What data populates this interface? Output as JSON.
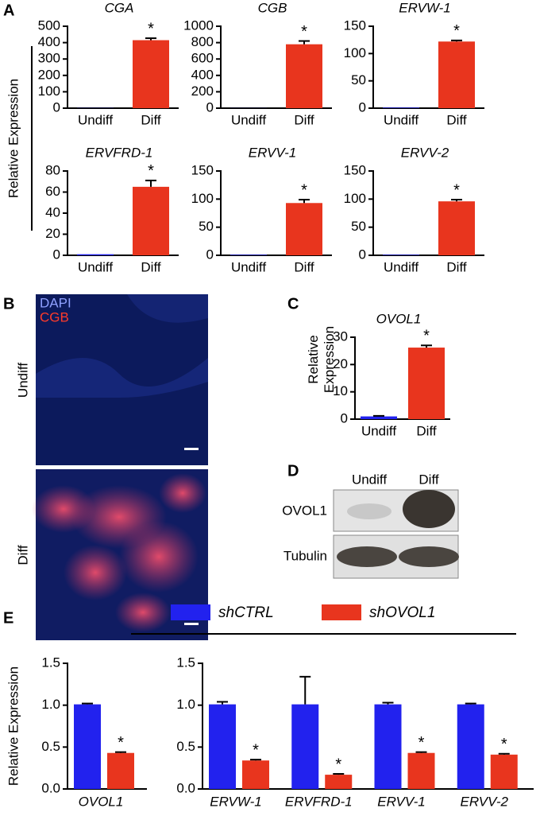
{
  "chart_data": [
    {
      "type": "bar",
      "title": "CGA",
      "categories": [
        "Undiff",
        "Diff"
      ],
      "values": [
        1,
        415
      ],
      "errors": [
        0,
        12
      ],
      "colors": [
        "#2222ee",
        "#e8351e"
      ],
      "annotations": [
        null,
        "*"
      ],
      "ylim": [
        0,
        500
      ],
      "yticks": [
        0,
        100,
        200,
        300,
        400,
        500
      ]
    },
    {
      "type": "bar",
      "title": "CGB",
      "categories": [
        "Undiff",
        "Diff"
      ],
      "values": [
        1,
        780
      ],
      "errors": [
        0,
        40
      ],
      "colors": [
        "#2222ee",
        "#e8351e"
      ],
      "annotations": [
        null,
        "*"
      ],
      "ylim": [
        0,
        1000
      ],
      "yticks": [
        0,
        200,
        400,
        600,
        800,
        1000
      ]
    },
    {
      "type": "bar",
      "title": "ERVW-1",
      "categories": [
        "Undiff",
        "Diff"
      ],
      "values": [
        1,
        122
      ],
      "errors": [
        0,
        2
      ],
      "colors": [
        "#2222ee",
        "#e8351e"
      ],
      "annotations": [
        null,
        "*"
      ],
      "ylim": [
        0,
        150
      ],
      "yticks": [
        0,
        50,
        100,
        150
      ]
    },
    {
      "type": "bar",
      "title": "ERVFRD-1",
      "categories": [
        "Undiff",
        "Diff"
      ],
      "values": [
        1,
        65
      ],
      "errors": [
        0,
        6
      ],
      "colors": [
        "#2222ee",
        "#e8351e"
      ],
      "annotations": [
        null,
        "*"
      ],
      "ylim": [
        0,
        80
      ],
      "yticks": [
        0,
        20,
        40,
        60,
        80
      ]
    },
    {
      "type": "bar",
      "title": "ERVV-1",
      "categories": [
        "Undiff",
        "Diff"
      ],
      "values": [
        1,
        93
      ],
      "errors": [
        0,
        6
      ],
      "colors": [
        "#2222ee",
        "#e8351e"
      ],
      "annotations": [
        null,
        "*"
      ],
      "ylim": [
        0,
        150
      ],
      "yticks": [
        0,
        50,
        100,
        150
      ]
    },
    {
      "type": "bar",
      "title": "ERVV-2",
      "categories": [
        "Undiff",
        "Diff"
      ],
      "values": [
        1,
        96
      ],
      "errors": [
        0,
        3
      ],
      "colors": [
        "#2222ee",
        "#e8351e"
      ],
      "annotations": [
        null,
        "*"
      ],
      "ylim": [
        0,
        150
      ],
      "yticks": [
        0,
        50,
        100,
        150
      ]
    },
    {
      "type": "bar",
      "title": "OVOL1",
      "ylabel": "Relative Expression",
      "categories": [
        "Undiff",
        "Diff"
      ],
      "values": [
        1,
        26.2
      ],
      "errors": [
        0.2,
        0.8
      ],
      "colors": [
        "#2222ee",
        "#e8351e"
      ],
      "annotations": [
        null,
        "*"
      ],
      "ylim": [
        0,
        30
      ],
      "yticks": [
        0,
        10,
        20,
        30
      ]
    },
    {
      "type": "grouped_bar",
      "categories": [
        "OVOL1"
      ],
      "ylabel": "Relative Expression",
      "series": [
        {
          "color": "#2222ee",
          "values": [
            1.01
          ],
          "errors": [
            0.01
          ],
          "annotations": [
            null
          ]
        },
        {
          "color": "#e8351e",
          "values": [
            0.43
          ],
          "errors": [
            0.01
          ],
          "annotations": [
            "*"
          ]
        }
      ],
      "ylim": [
        0,
        1.5
      ],
      "yticks": [
        {
          "value": 0,
          "label": "0.0"
        },
        0.5,
        {
          "value": 1,
          "label": "1.0"
        },
        1.5
      ]
    },
    {
      "type": "grouped_bar",
      "categories": [
        "ERVW-1",
        "ERVFRD-1",
        "ERVV-1",
        "ERVV-2"
      ],
      "legend": "top",
      "series": [
        {
          "name": "shCTRL",
          "color": "#2222ee",
          "values": [
            1.01,
            1.01,
            1.01,
            1.01
          ],
          "errors": [
            0.03,
            0.33,
            0.02,
            0.01
          ],
          "annotations": [
            null,
            null,
            null,
            null
          ]
        },
        {
          "name": "shOVOL1",
          "color": "#e8351e",
          "values": [
            0.34,
            0.17,
            0.43,
            0.41
          ],
          "errors": [
            0.01,
            0.01,
            0.01,
            0.01
          ],
          "annotations": [
            "*",
            "*",
            "*",
            "*"
          ]
        }
      ],
      "ylim": [
        0,
        1.5
      ],
      "yticks": [
        {
          "value": 0,
          "label": "0.0"
        },
        0.5,
        {
          "value": 1,
          "label": "1.0"
        },
        1.5
      ]
    }
  ],
  "panel_labels": [
    "A",
    "B",
    "C",
    "D",
    "E"
  ],
  "panel_a_ylabel": "Relative Expression",
  "panel_b": {
    "legend": [
      "DAPI",
      "CGB"
    ],
    "rows": [
      "Undiff",
      "Diff"
    ]
  },
  "panel_d": {
    "columns": [
      "Undiff",
      "Diff"
    ],
    "rows": [
      "OVOL1",
      "Tubulin"
    ]
  }
}
